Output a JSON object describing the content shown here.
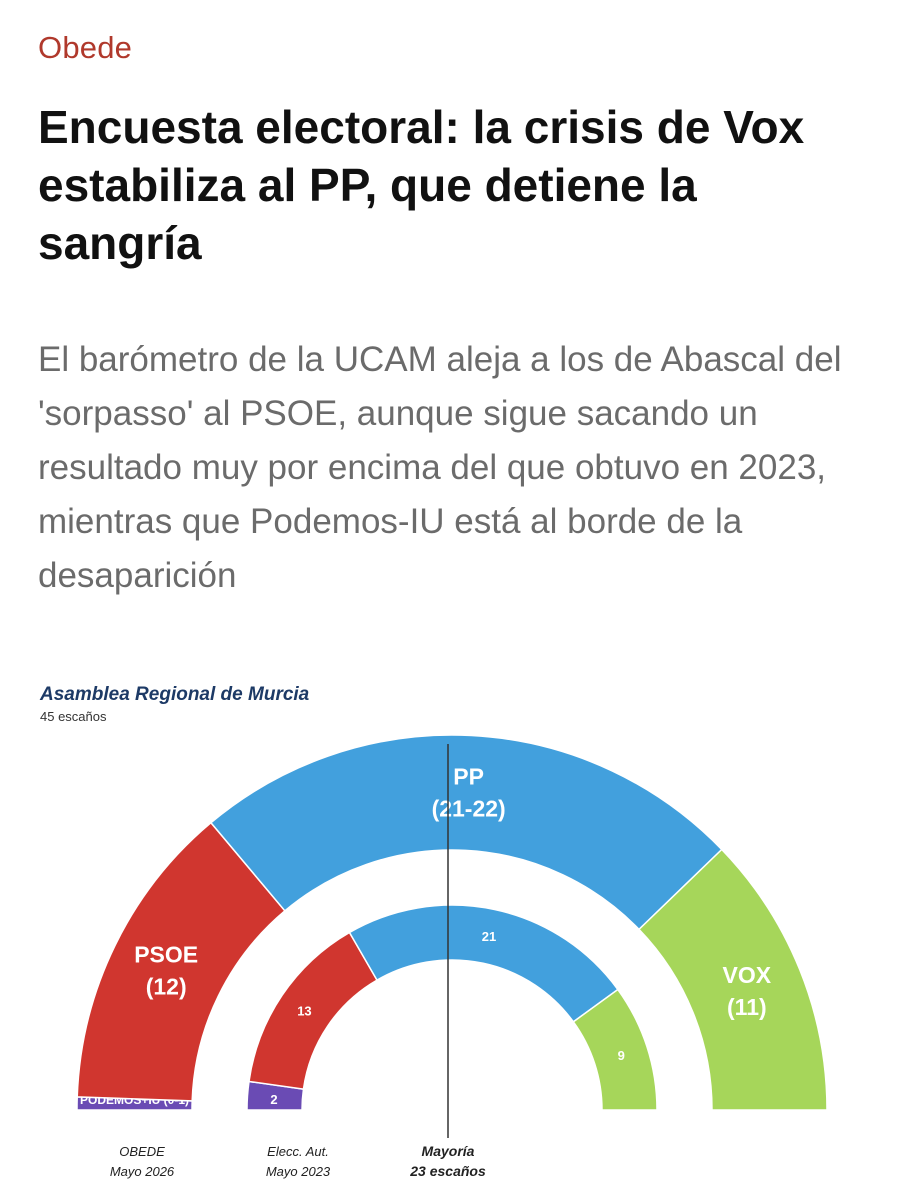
{
  "article": {
    "section": "Obede",
    "title": "Encuesta electoral: la crisis de Vox estabiliza al PP, que detiene la sangría",
    "subtitle": "El barómetro de la UCAM aleja a los de Abascal del 'sorpasso' al PSOE, aunque sigue sacando un resultado muy por encima del que obtuvo en 2023, mientras que Podemos-IU está al borde de la desaparición"
  },
  "chart_data": {
    "type": "pie",
    "subtype": "parliament-hemicycle",
    "title": "Asamblea Regional de Murcia",
    "subtitle": "45 escaños",
    "total_seats": 45,
    "majority": {
      "label": "Mayoría",
      "sublabel": "23 escaños",
      "seats": 23
    },
    "rings": [
      {
        "name_line1": "OBEDE",
        "name_line2": "Mayo 2026",
        "segments": [
          {
            "party": "PODEMOS+IU",
            "seats": 0.5,
            "label": "PODEMOS+IU (0-1)",
            "color": "#6a4bb4"
          },
          {
            "party": "PSOE",
            "seats": 12,
            "label_line1": "PSOE",
            "label_line2": "(12)",
            "color": "#d0362f"
          },
          {
            "party": "PP",
            "seats": 21.5,
            "label_line1": "PP",
            "label_line2": "(21-22)",
            "color": "#42a0dd"
          },
          {
            "party": "VOX",
            "seats": 11,
            "label_line1": "VOX",
            "label_line2": "(11)",
            "color": "#a6d65a"
          }
        ]
      },
      {
        "name_line1": "Elecc. Aut.",
        "name_line2": "Mayo 2023",
        "segments": [
          {
            "party": "PODEMOS+IU",
            "seats": 2,
            "label": "2",
            "color": "#6a4bb4"
          },
          {
            "party": "PSOE",
            "seats": 13,
            "label": "13",
            "color": "#d0362f"
          },
          {
            "party": "PP",
            "seats": 21,
            "label": "21",
            "color": "#42a0dd"
          },
          {
            "party": "VOX",
            "seats": 9,
            "label": "9",
            "color": "#a6d65a"
          }
        ]
      }
    ]
  }
}
